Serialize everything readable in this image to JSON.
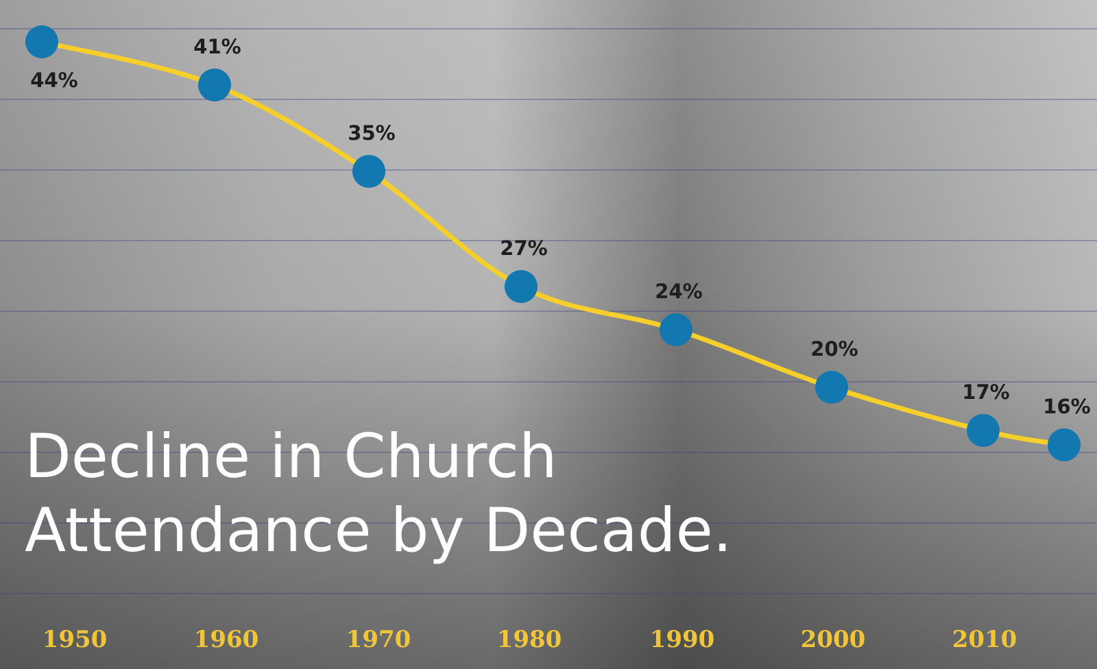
{
  "chart_data": {
    "type": "line",
    "title": "Decline in Church Attendance by Decade.",
    "categories": [
      "1950",
      "1960",
      "1970",
      "1980",
      "1990",
      "2000",
      "2010",
      null
    ],
    "values": [
      44,
      41,
      35,
      27,
      24,
      20,
      17,
      16
    ],
    "value_labels": [
      "44%",
      "41%",
      "35%",
      "27%",
      "24%",
      "20%",
      "17%",
      "16%"
    ],
    "color": "#1377b0",
    "line_color": "#f7cf2a",
    "label_color": "#f0c53a"
  }
}
